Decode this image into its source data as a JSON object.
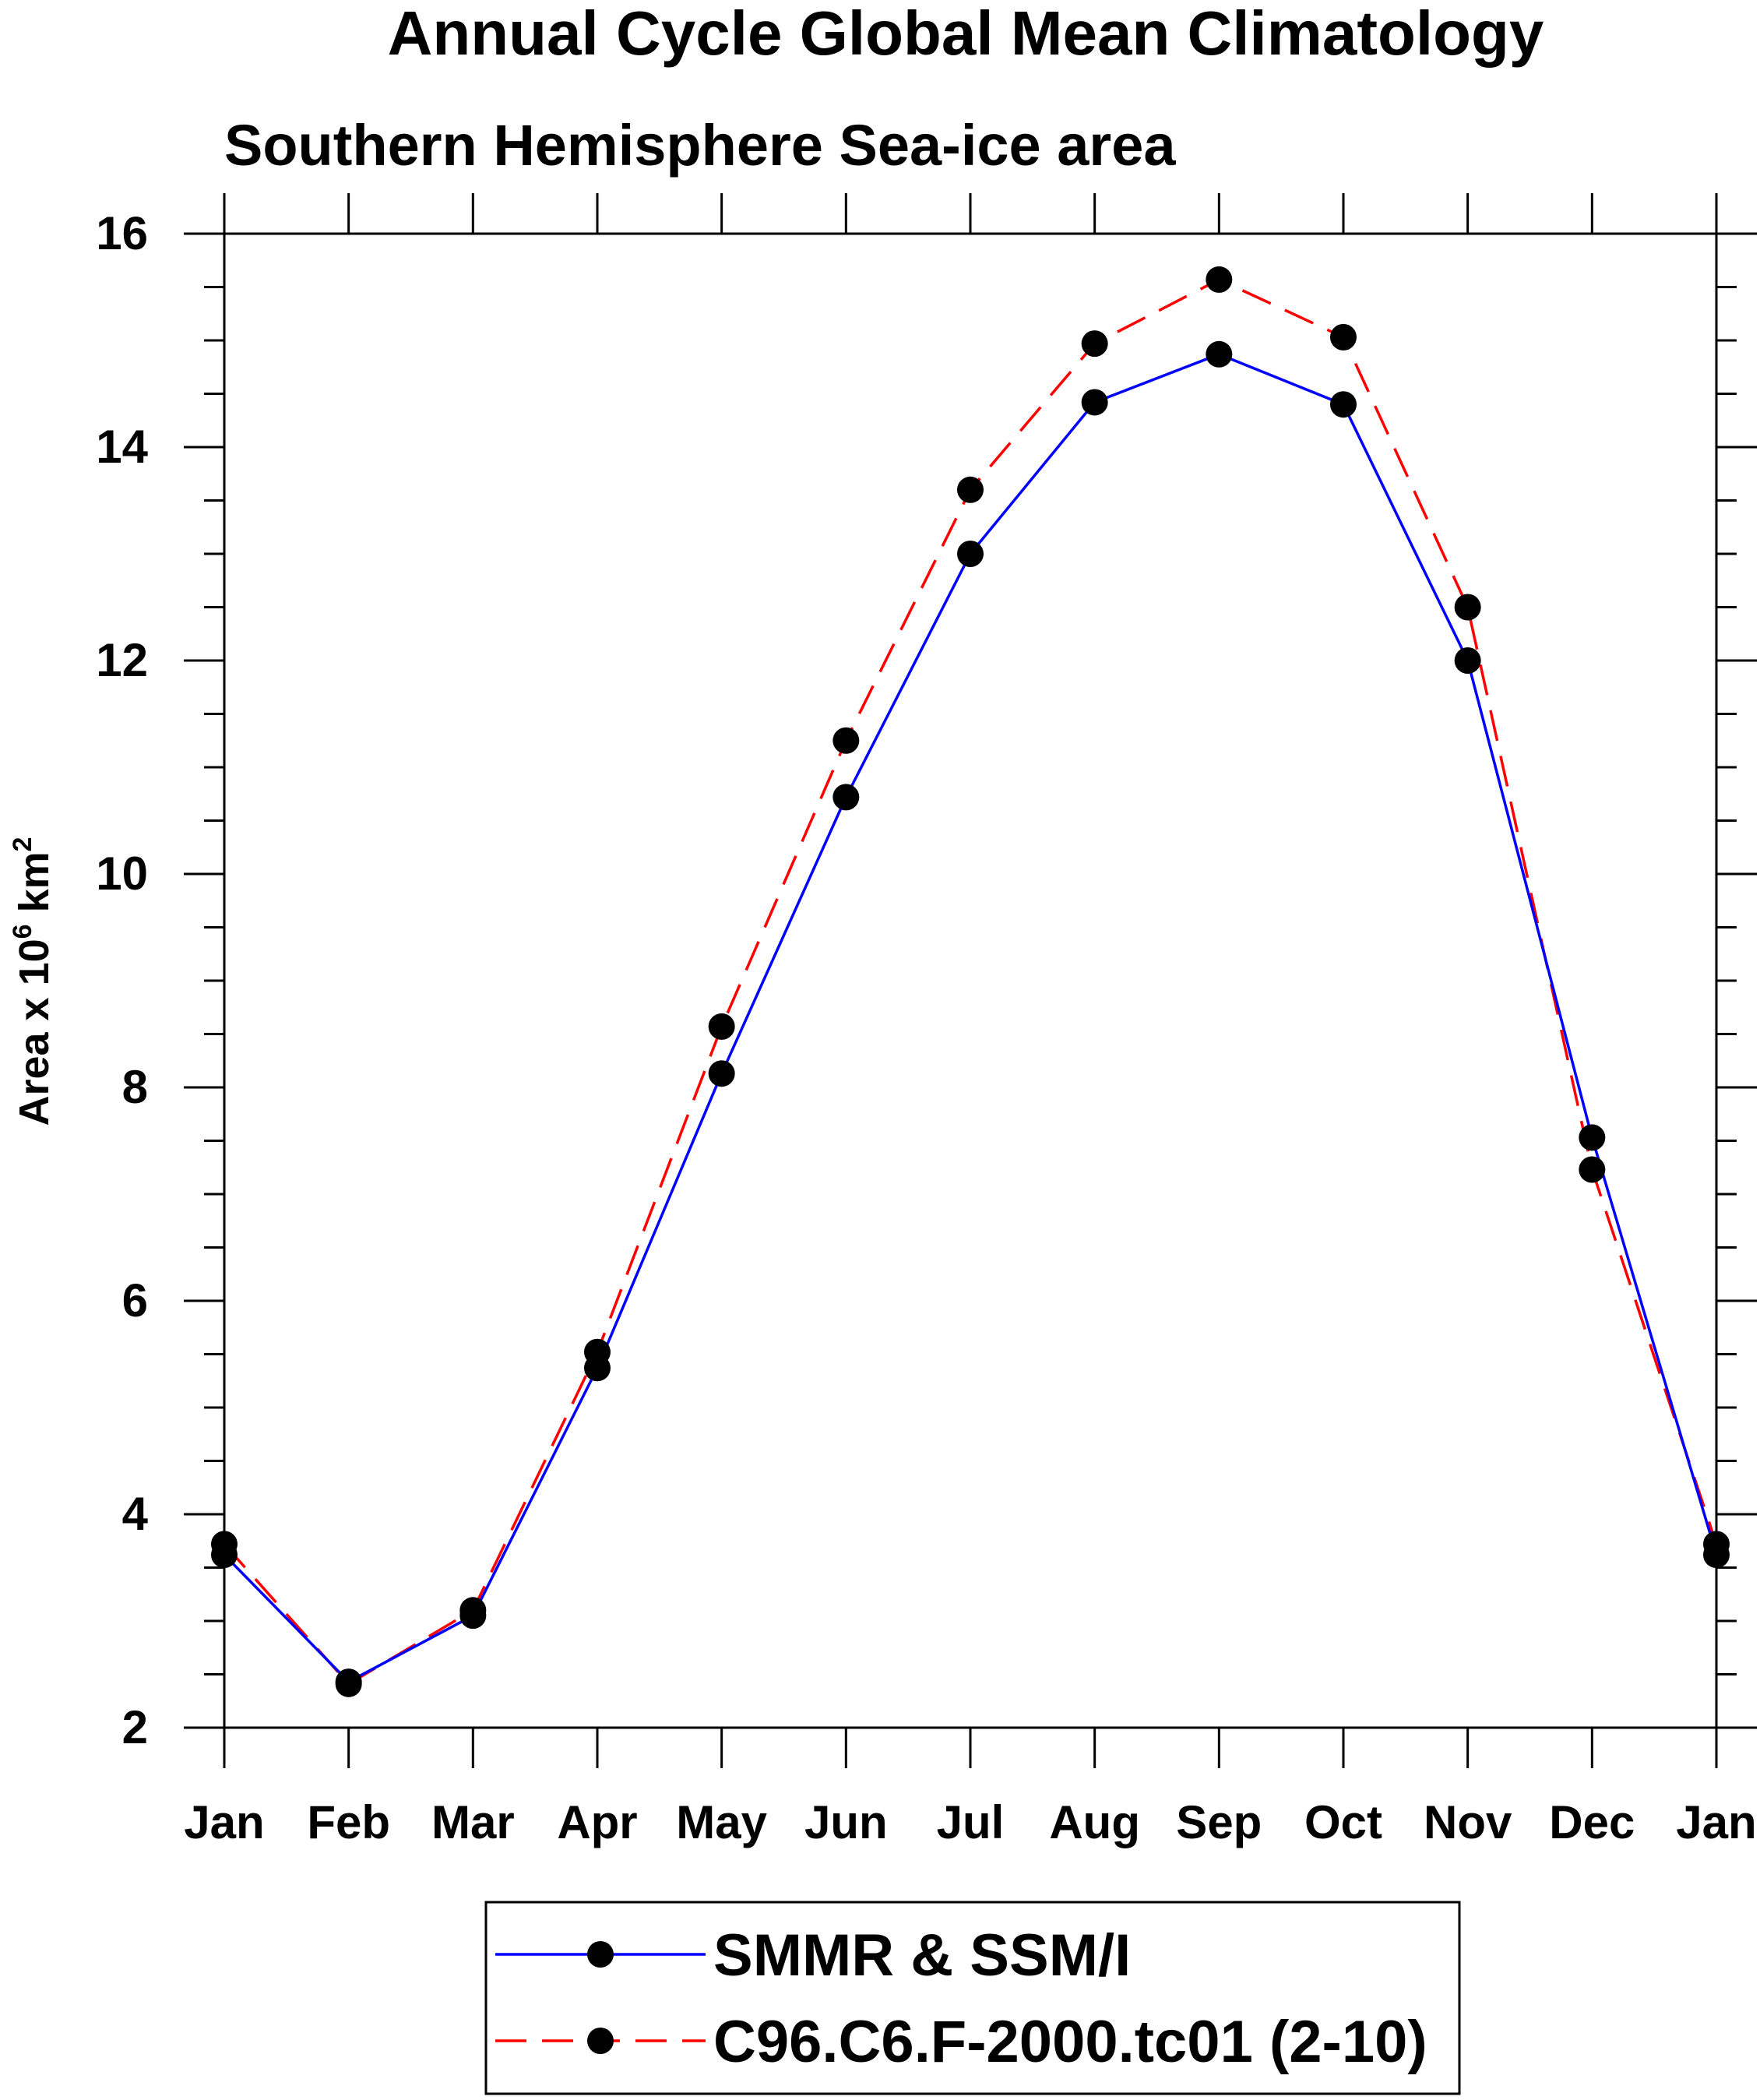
{
  "chart_data": {
    "type": "line",
    "title": "Annual Cycle Global Mean Climatology",
    "subtitle": "Southern Hemisphere Sea-ice area",
    "ylabel": {
      "main": "Area x 10",
      "sup1": "6",
      "mid": " km",
      "sup2": "2"
    },
    "xlabel": "",
    "categories": [
      "Jan",
      "Feb",
      "Mar",
      "Apr",
      "May",
      "Jun",
      "Jul",
      "Aug",
      "Sep",
      "Oct",
      "Nov",
      "Dec",
      "Jan"
    ],
    "ylim": [
      2,
      16
    ],
    "yticks": [
      2,
      4,
      6,
      8,
      10,
      12,
      14,
      16
    ],
    "ytick_labels": [
      "2",
      "4",
      "6",
      "8",
      "10",
      "12",
      "14",
      "16"
    ],
    "y_minor_step": 0.5,
    "grid": false,
    "legend_position": "bottom-center",
    "series": [
      {
        "name": "SMMR & SSM/I",
        "color": "#0000ff",
        "dash": "solid",
        "values": [
          3.62,
          2.43,
          3.05,
          5.37,
          8.13,
          10.72,
          13.0,
          14.42,
          14.87,
          14.4,
          12.0,
          7.53,
          3.62
        ]
      },
      {
        "name": "C96.C6.F-2000.tc01 (2-10)",
        "color": "#ff0000",
        "dash": "dashed",
        "values": [
          3.72,
          2.41,
          3.1,
          5.52,
          8.57,
          11.25,
          13.6,
          14.97,
          15.57,
          15.03,
          12.5,
          7.23,
          3.72
        ]
      }
    ]
  }
}
